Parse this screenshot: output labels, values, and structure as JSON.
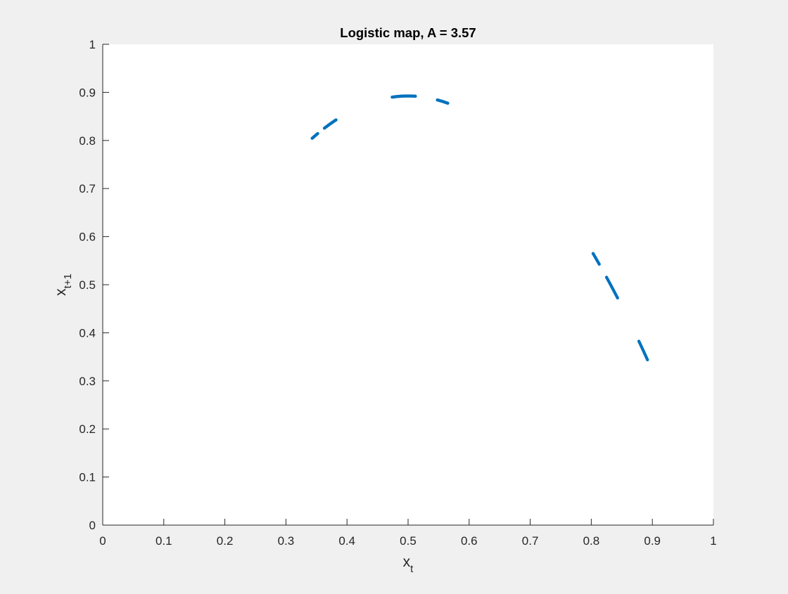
{
  "figure": {
    "background": "#f0f0f0"
  },
  "chart_data": {
    "type": "scatter",
    "title": "Logistic map, A = 3.57",
    "xlabel_main": "x",
    "xlabel_sub": "t",
    "ylabel_main": "x",
    "ylabel_sub": "t+1",
    "xlim": [
      0,
      1
    ],
    "ylim": [
      0,
      1
    ],
    "xticks": [
      0,
      0.1,
      0.2,
      0.3,
      0.4,
      0.5,
      0.6,
      0.7,
      0.8,
      0.9,
      1
    ],
    "xtick_labels": [
      "0",
      "0.1",
      "0.2",
      "0.3",
      "0.4",
      "0.5",
      "0.6",
      "0.7",
      "0.8",
      "0.9",
      "1"
    ],
    "yticks": [
      0,
      0.1,
      0.2,
      0.3,
      0.4,
      0.5,
      0.6,
      0.7,
      0.8,
      0.9,
      1
    ],
    "ytick_labels": [
      "0",
      "0.1",
      "0.2",
      "0.3",
      "0.4",
      "0.5",
      "0.6",
      "0.7",
      "0.8",
      "0.9",
      "1"
    ],
    "grid": false,
    "marker_color": "#0072bd",
    "parameter_A": 3.57,
    "x_segments": [
      [
        0.343,
        0.352
      ],
      [
        0.363,
        0.382
      ],
      [
        0.474,
        0.512
      ],
      [
        0.548,
        0.565
      ],
      [
        0.803,
        0.813
      ],
      [
        0.825,
        0.843
      ],
      [
        0.878,
        0.892
      ]
    ]
  }
}
